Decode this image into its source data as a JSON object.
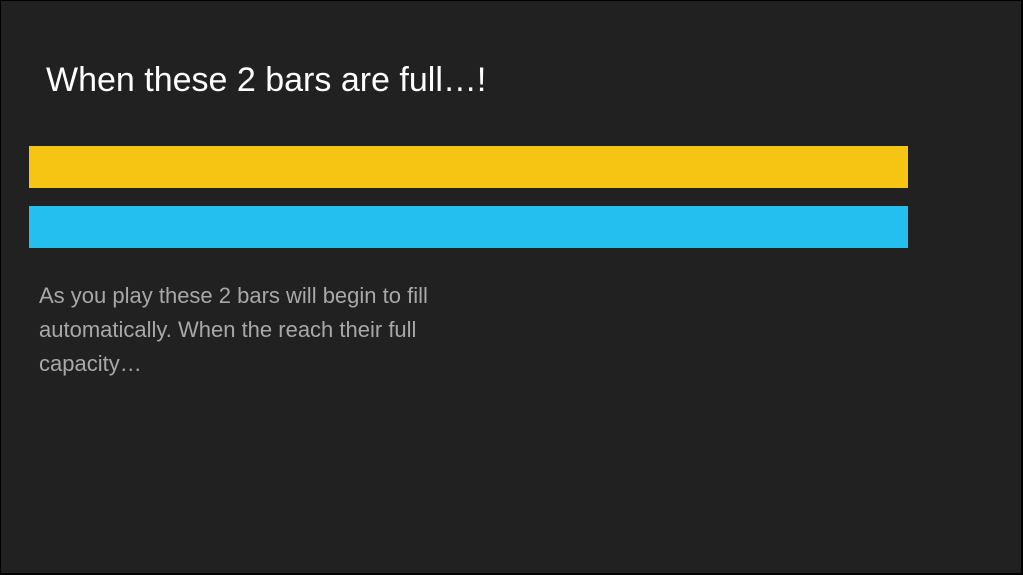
{
  "slide": {
    "title": "When these 2 bars are full…!",
    "bars": [
      {
        "color": "#f6c412",
        "fill_percent": 100
      },
      {
        "color": "#24bfef",
        "fill_percent": 100
      }
    ],
    "body": "As you play these 2 bars will begin to fill automatically. When the reach their full capacity…"
  }
}
